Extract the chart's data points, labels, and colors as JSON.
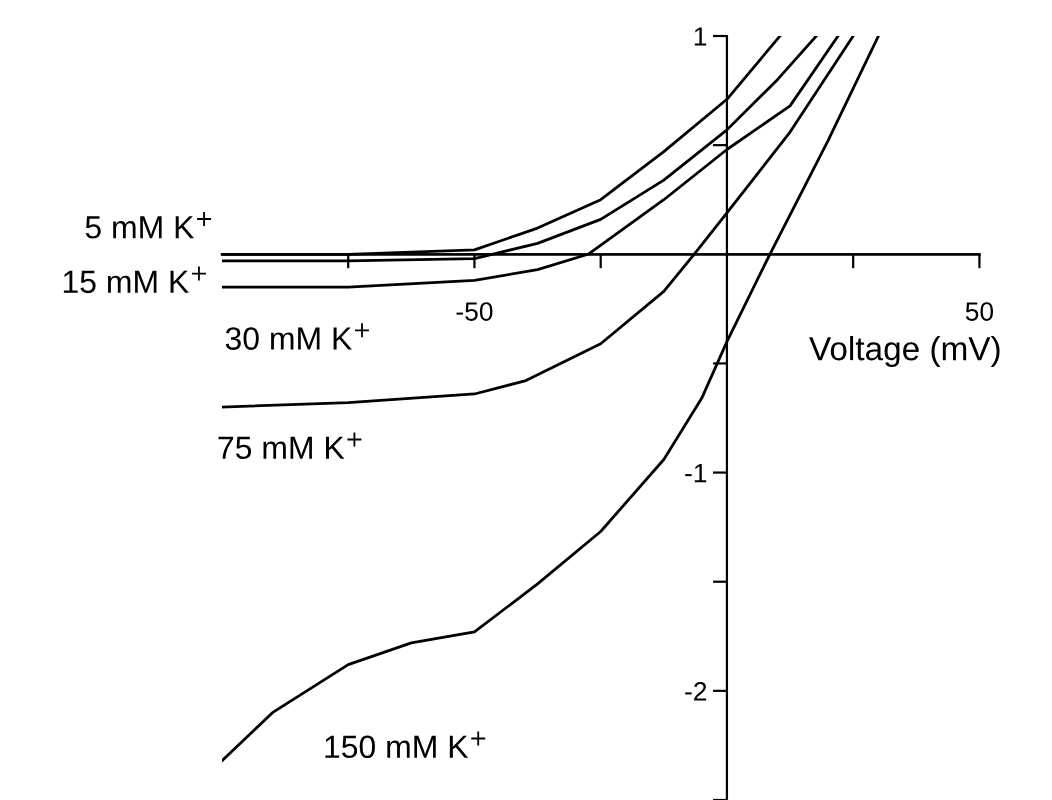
{
  "chart_data": {
    "type": "line",
    "xlabel": "Voltage (mV)",
    "xlim": [
      -100,
      50
    ],
    "ylim": [
      -2.5,
      1
    ],
    "xticks": [
      {
        "value": -75,
        "label": null
      },
      -50,
      {
        "value": -25,
        "label": null
      },
      {
        "value": 25,
        "label": null
      },
      50
    ],
    "yticks": [
      {
        "value": -2.5,
        "label": null
      },
      -2,
      {
        "value": -1.5,
        "label": null
      },
      -1,
      {
        "value": -0.5,
        "label": null
      },
      {
        "value": 0.5,
        "label": null
      },
      1
    ],
    "grid": false,
    "legend": false,
    "marker": "none",
    "line_style": "solid",
    "series": [
      {
        "name": "5 mM K$^{+}$",
        "color": "#000000",
        "x": [
          -100,
          -75,
          -50,
          -37.5,
          -25,
          -12.5,
          0,
          10.5
        ],
        "values": [
          0.0,
          0.0,
          0.02,
          0.12,
          0.25,
          0.47,
          0.71,
          1.0
        ]
      },
      {
        "name": "15 mM K$^{+}$",
        "color": "#000000",
        "x": [
          -100,
          -75,
          -50,
          -37.5,
          -25,
          -12.5,
          0,
          10,
          17.7
        ],
        "values": [
          -0.03,
          -0.03,
          -0.02,
          0.05,
          0.16,
          0.34,
          0.57,
          0.8,
          1.0
        ]
      },
      {
        "name": "30 mM K$^{+}$",
        "color": "#000000",
        "x": [
          -100,
          -75,
          -50,
          -37.5,
          -27.5,
          -12.5,
          0,
          12.5,
          22
        ],
        "values": [
          -0.15,
          -0.15,
          -0.12,
          -0.07,
          0.0,
          0.25,
          0.48,
          0.68,
          1.0
        ]
      },
      {
        "name": "75 mM K$^{+}$",
        "color": "#000000",
        "x": [
          -100,
          -75,
          -50,
          -40,
          -25,
          -12.5,
          -6.5,
          0,
          12.5,
          25
        ],
        "values": [
          -0.7,
          -0.68,
          -0.64,
          -0.58,
          -0.41,
          -0.17,
          0.0,
          0.19,
          0.56,
          1.0
        ]
      },
      {
        "name": "150 mM K$^{+}$",
        "color": "#000000",
        "x": [
          -100,
          -90,
          -75,
          -62.5,
          -50,
          -37.5,
          -25,
          -12.5,
          -5,
          0,
          8.5,
          20,
          30
        ],
        "values": [
          -2.32,
          -2.1,
          -1.88,
          -1.78,
          -1.73,
          -1.51,
          -1.27,
          -0.94,
          -0.66,
          -0.4,
          0.0,
          0.52,
          1.0
        ]
      }
    ]
  }
}
